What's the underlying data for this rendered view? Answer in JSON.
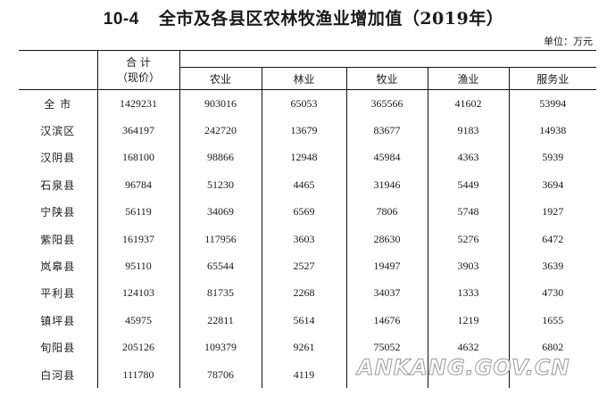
{
  "title": {
    "number": "10-4",
    "text": "全市及各县区农林牧渔业增加值（2019年）"
  },
  "unit": "单位：万元",
  "header": {
    "total_line1": "合  计",
    "total_line2": "（现价）",
    "columns": [
      "农业",
      "林业",
      "牧业",
      "渔业",
      "服务业"
    ]
  },
  "rows": [
    {
      "name": "全  市",
      "values": [
        "1429231",
        "903016",
        "65053",
        "365566",
        "41602",
        "53994"
      ]
    },
    {
      "name": "汉滨区",
      "values": [
        "364197",
        "242720",
        "13679",
        "83677",
        "9183",
        "14938"
      ]
    },
    {
      "name": "汉阴县",
      "values": [
        "168100",
        "98866",
        "12948",
        "45984",
        "4363",
        "5939"
      ]
    },
    {
      "name": "石泉县",
      "values": [
        "96784",
        "51230",
        "4465",
        "31946",
        "5449",
        "3694"
      ]
    },
    {
      "name": "宁陕县",
      "values": [
        "56119",
        "34069",
        "6569",
        "7806",
        "5748",
        "1927"
      ]
    },
    {
      "name": "紫阳县",
      "values": [
        "161937",
        "117956",
        "3603",
        "28630",
        "5276",
        "6472"
      ]
    },
    {
      "name": "岚皋县",
      "values": [
        "95110",
        "65544",
        "2527",
        "19497",
        "3903",
        "3639"
      ]
    },
    {
      "name": "平利县",
      "values": [
        "124103",
        "81735",
        "2268",
        "34037",
        "1333",
        "4730"
      ]
    },
    {
      "name": "镇坪县",
      "values": [
        "45975",
        "22811",
        "5614",
        "14676",
        "1219",
        "1655"
      ]
    },
    {
      "name": "旬阳县",
      "values": [
        "205126",
        "109379",
        "9261",
        "75052",
        "4632",
        "6802"
      ]
    },
    {
      "name": "白河县",
      "values": [
        "111780",
        "78706",
        "4119",
        "",
        "",
        ""
      ]
    }
  ],
  "watermark": "ANKANG.GOV.CN"
}
